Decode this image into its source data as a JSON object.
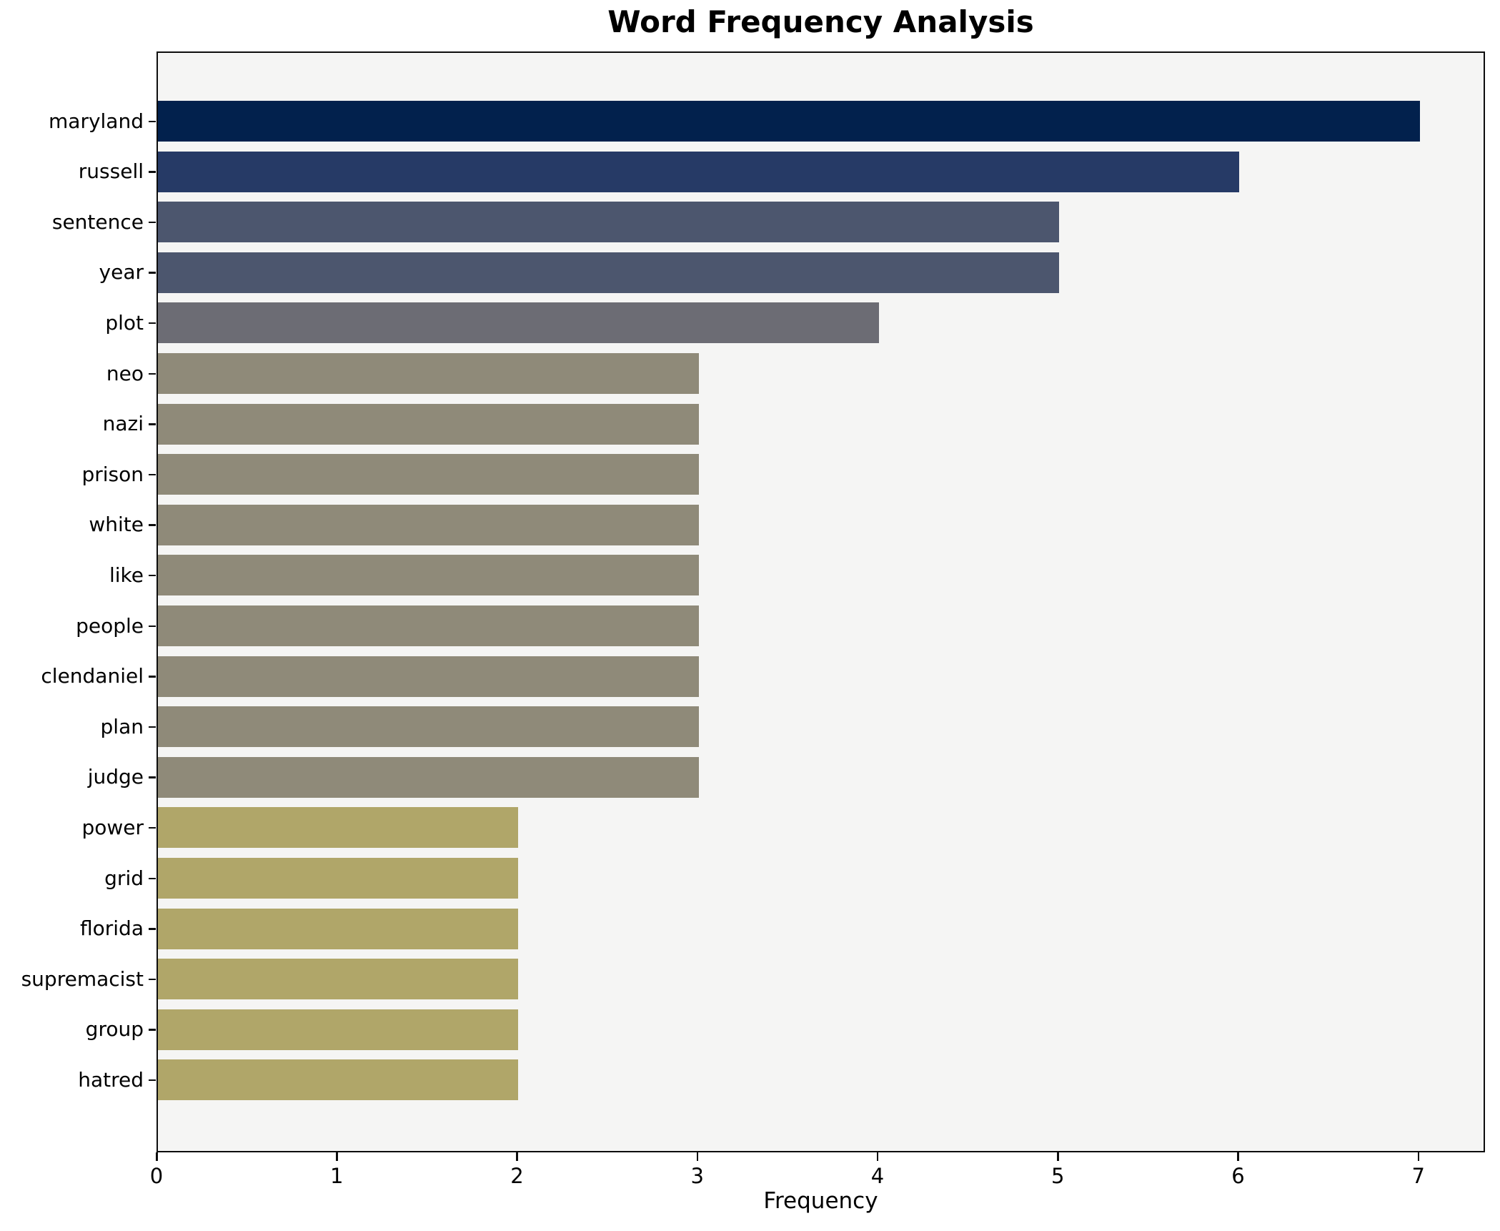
{
  "chart_data": {
    "type": "bar",
    "orientation": "horizontal",
    "title": "Word Frequency Analysis",
    "xlabel": "Frequency",
    "ylabel": "",
    "categories": [
      "maryland",
      "russell",
      "sentence",
      "year",
      "plot",
      "neo",
      "nazi",
      "prison",
      "white",
      "like",
      "people",
      "clendaniel",
      "plan",
      "judge",
      "power",
      "grid",
      "florida",
      "supremacist",
      "group",
      "hatred"
    ],
    "values": [
      7,
      6,
      5,
      5,
      4,
      3,
      3,
      3,
      3,
      3,
      3,
      3,
      3,
      3,
      2,
      2,
      2,
      2,
      2,
      2
    ],
    "bar_colors": [
      "#02214d",
      "#263a66",
      "#4c566e",
      "#4c566e",
      "#6c6c74",
      "#8f8a79",
      "#8f8a79",
      "#8f8a79",
      "#8f8a79",
      "#8f8a79",
      "#8f8a79",
      "#8f8a79",
      "#8f8a79",
      "#8f8a79",
      "#b0a669",
      "#b0a669",
      "#b0a669",
      "#b0a669",
      "#b0a669",
      "#b0a669"
    ],
    "xlim": [
      0,
      7.35
    ],
    "xticks": [
      0,
      1,
      2,
      3,
      4,
      5,
      6,
      7
    ],
    "xtick_labels": [
      "0",
      "1",
      "2",
      "3",
      "4",
      "5",
      "6",
      "7"
    ],
    "grid": false,
    "legend": null,
    "plot_background": "#f5f5f4",
    "figure_background": "#ffffff",
    "spine_color": "#0d0d0d",
    "text_color": "#000000"
  }
}
